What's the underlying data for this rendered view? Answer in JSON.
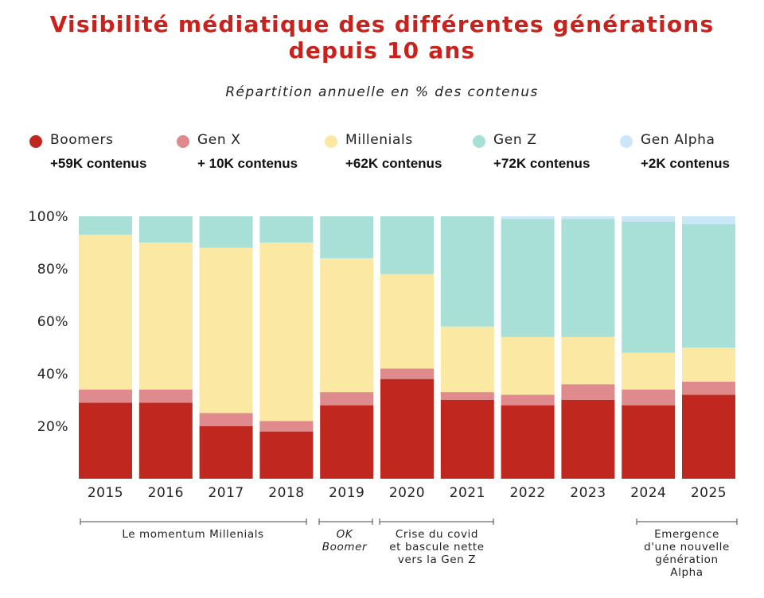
{
  "title_line1": "Visibilité médiatique des différentes générations",
  "title_line2": "depuis 10 ans",
  "subtitle": "Répartition annuelle en % des contenus",
  "legend": [
    {
      "name": "Boomers",
      "count": "+59K contenus",
      "color": "#c0281f"
    },
    {
      "name": "Gen X",
      "count": "+ 10K contenus",
      "color": "#df8a8d"
    },
    {
      "name": "Millenials",
      "count": "+62K contenus",
      "color": "#fbe8a2"
    },
    {
      "name": "Gen Z",
      "count": "+72K contenus",
      "color": "#a8e0d8"
    },
    {
      "name": "Gen Alpha",
      "count": "+2K contenus",
      "color": "#cbe7f7"
    }
  ],
  "annotations": {
    "momentum": "Le momentum Millenials",
    "ok_boomer_1": "OK",
    "ok_boomer_2": "Boomer",
    "covid_1": "Crise du covid",
    "covid_2": "et bascule nette",
    "covid_3": "vers la Gen Z",
    "alpha_1": "Emergence",
    "alpha_2": "d'une nouvelle",
    "alpha_3": "génération",
    "alpha_4": "Alpha"
  },
  "chart_data": {
    "type": "bar",
    "stacked": true,
    "categories": [
      "2015",
      "2016",
      "2017",
      "2018",
      "2019",
      "2020",
      "2021",
      "2022",
      "2023",
      "2024",
      "2025"
    ],
    "series": [
      {
        "name": "Boomers",
        "values": [
          29,
          29,
          20,
          18,
          28,
          38,
          30,
          28,
          30,
          28,
          32
        ]
      },
      {
        "name": "Gen X",
        "values": [
          5,
          5,
          5,
          4,
          5,
          4,
          3,
          4,
          6,
          6,
          5
        ]
      },
      {
        "name": "Millenials",
        "values": [
          59,
          56,
          63,
          68,
          51,
          36,
          25,
          22,
          18,
          14,
          13
        ]
      },
      {
        "name": "Gen Z",
        "values": [
          7,
          10,
          12,
          10,
          16,
          22,
          42,
          45,
          45,
          50,
          47
        ]
      },
      {
        "name": "Gen Alpha",
        "values": [
          0,
          0,
          0,
          0,
          0,
          0,
          0,
          1,
          1,
          2,
          3
        ]
      }
    ],
    "y_ticks": [
      "100%",
      "80%",
      "60%",
      "40%",
      "20%"
    ],
    "y_tick_values": [
      100,
      80,
      60,
      40,
      20
    ],
    "ylim": [
      0,
      100
    ],
    "grid": false,
    "legend_position": "top"
  }
}
